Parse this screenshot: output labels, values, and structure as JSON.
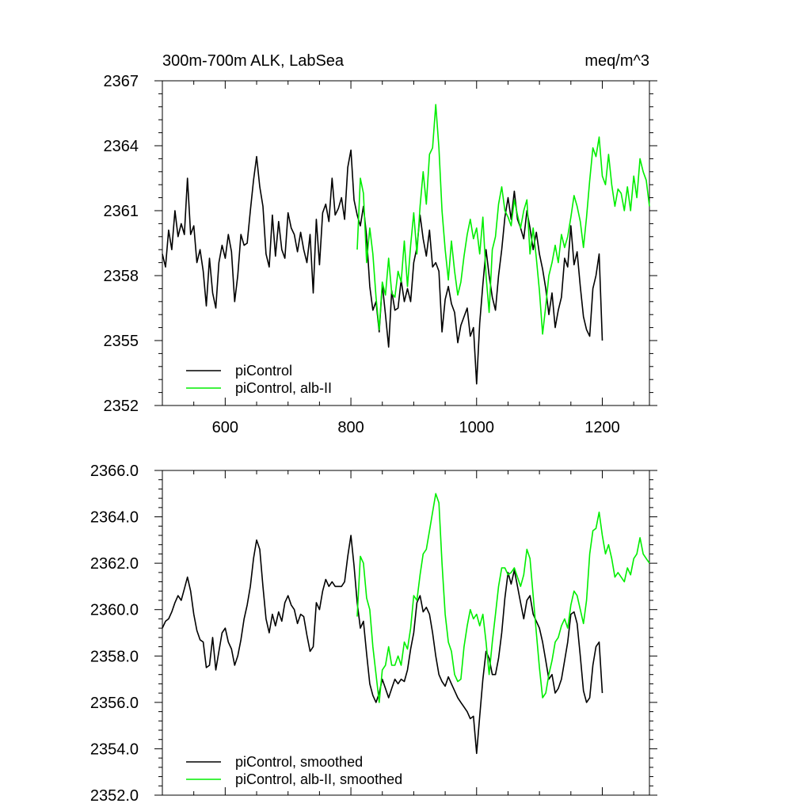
{
  "chart_data": [
    {
      "type": "line",
      "title": "300m-700m ALK, LabSea",
      "units": "meq/m^3",
      "xlim": [
        500,
        1275
      ],
      "ylim": [
        2352,
        2367
      ],
      "xticks": [
        600,
        800,
        1000,
        1200
      ],
      "xtick_labels": [
        "600",
        "800",
        "1000",
        "1200"
      ],
      "yticks": [
        2352,
        2355,
        2358,
        2361,
        2364,
        2367
      ],
      "ytick_labels": [
        "2352",
        "2355",
        "2358",
        "2361",
        "2364",
        "2367"
      ],
      "legend_position": "bottom-left",
      "series": [
        {
          "name": "piControl",
          "color": "#000000",
          "x": [
            500,
            505,
            510,
            515,
            520,
            525,
            530,
            535,
            540,
            545,
            550,
            555,
            560,
            565,
            570,
            575,
            580,
            585,
            590,
            595,
            600,
            605,
            610,
            615,
            620,
            625,
            630,
            635,
            640,
            645,
            650,
            655,
            660,
            665,
            670,
            675,
            680,
            685,
            690,
            695,
            700,
            705,
            710,
            715,
            720,
            725,
            730,
            735,
            740,
            745,
            750,
            755,
            760,
            765,
            770,
            775,
            780,
            785,
            790,
            795,
            800,
            805,
            810,
            815,
            820,
            825,
            830,
            835,
            840,
            845,
            850,
            855,
            860,
            865,
            870,
            875,
            880,
            885,
            890,
            895,
            900,
            905,
            910,
            915,
            920,
            925,
            930,
            935,
            940,
            945,
            950,
            955,
            960,
            965,
            970,
            975,
            980,
            985,
            990,
            995,
            1000,
            1005,
            1010,
            1015,
            1020,
            1025,
            1030,
            1035,
            1040,
            1045,
            1050,
            1055,
            1060,
            1065,
            1070,
            1075,
            1080,
            1085,
            1090,
            1095,
            1100,
            1105,
            1110,
            1115,
            1120,
            1125,
            1130,
            1135,
            1140,
            1145,
            1150,
            1155,
            1160,
            1165,
            1170,
            1175,
            1180,
            1185,
            1190,
            1195,
            1200
          ],
          "values": [
            2359.0,
            2358.4,
            2360.1,
            2359.2,
            2361.0,
            2359.8,
            2360.4,
            2359.9,
            2362.5,
            2359.9,
            2360.3,
            2358.6,
            2359.2,
            2358.2,
            2356.6,
            2358.8,
            2357.2,
            2356.5,
            2358.6,
            2359.4,
            2358.8,
            2359.9,
            2359.1,
            2356.8,
            2358.0,
            2359.9,
            2359.4,
            2359.5,
            2361.0,
            2362.4,
            2363.5,
            2362.1,
            2361.2,
            2359.0,
            2358.4,
            2360.8,
            2358.9,
            2360.5,
            2359.2,
            2358.8,
            2360.9,
            2360.2,
            2359.9,
            2359.1,
            2360.0,
            2359.2,
            2358.6,
            2359.9,
            2357.2,
            2360.6,
            2358.5,
            2360.9,
            2361.3,
            2360.5,
            2362.5,
            2360.8,
            2361.1,
            2361.6,
            2360.6,
            2363.0,
            2363.8,
            2361.5,
            2360.8,
            2360.3,
            2361.2,
            2359.8,
            2357.5,
            2356.4,
            2356.8,
            2355.4,
            2357.6,
            2356.2,
            2354.7,
            2357.3,
            2356.4,
            2356.5,
            2357.8,
            2356.8,
            2357.4,
            2356.8,
            2358.6,
            2359.3,
            2360.8,
            2359.7,
            2358.9,
            2360.1,
            2358.4,
            2358.6,
            2358.2,
            2355.4,
            2356.9,
            2357.5,
            2356.7,
            2356.3,
            2354.9,
            2355.7,
            2356.1,
            2356.5,
            2355.2,
            2355.6,
            2353.0,
            2355.8,
            2357.6,
            2359.2,
            2358.0,
            2357.0,
            2356.4,
            2358.0,
            2359.2,
            2360.7,
            2361.6,
            2360.6,
            2361.9,
            2360.6,
            2360.2,
            2359.7,
            2361.0,
            2360.2,
            2359.2,
            2360.0,
            2359.0,
            2358.3,
            2357.4,
            2356.2,
            2357.2,
            2355.6,
            2356.4,
            2357.0,
            2358.8,
            2358.4,
            2360.3,
            2358.5,
            2359.1,
            2357.5,
            2356.1,
            2355.5,
            2355.2,
            2357.4,
            2358.0,
            2359.0,
            2355.0
          ]
        },
        {
          "name": "piControl, alb-II",
          "color": "#00ee00",
          "x": [
            810,
            815,
            820,
            825,
            830,
            835,
            840,
            845,
            850,
            855,
            860,
            865,
            870,
            875,
            880,
            885,
            890,
            895,
            900,
            905,
            910,
            915,
            920,
            925,
            930,
            935,
            940,
            945,
            950,
            955,
            960,
            965,
            970,
            975,
            980,
            985,
            990,
            995,
            1000,
            1005,
            1010,
            1015,
            1020,
            1025,
            1030,
            1035,
            1040,
            1045,
            1050,
            1055,
            1060,
            1065,
            1070,
            1075,
            1080,
            1085,
            1090,
            1095,
            1100,
            1105,
            1110,
            1115,
            1120,
            1125,
            1130,
            1135,
            1140,
            1145,
            1150,
            1155,
            1160,
            1165,
            1170,
            1175,
            1180,
            1185,
            1190,
            1195,
            1200,
            1205,
            1210,
            1215,
            1220,
            1225,
            1230,
            1235,
            1240,
            1245,
            1250,
            1255,
            1260,
            1265,
            1270,
            1275
          ],
          "values": [
            2359.2,
            2362.5,
            2361.8,
            2358.6,
            2360.2,
            2359.0,
            2357.0,
            2355.5,
            2357.7,
            2357.1,
            2358.8,
            2357.2,
            2357.0,
            2358.2,
            2357.7,
            2359.6,
            2357.5,
            2359.4,
            2360.9,
            2359.0,
            2361.2,
            2362.8,
            2361.3,
            2363.6,
            2363.9,
            2365.9,
            2363.9,
            2361.0,
            2359.2,
            2357.8,
            2359.6,
            2358.2,
            2357.1,
            2357.7,
            2358.9,
            2359.9,
            2360.6,
            2359.7,
            2360.2,
            2359.0,
            2360.7,
            2358.0,
            2356.3,
            2359.2,
            2359.8,
            2361.3,
            2362.1,
            2361.0,
            2360.7,
            2360.3,
            2361.5,
            2360.8,
            2360.2,
            2361.0,
            2361.5,
            2359.0,
            2360.2,
            2358.8,
            2357.3,
            2355.3,
            2356.6,
            2358.0,
            2358.6,
            2359.4,
            2358.6,
            2359.9,
            2359.3,
            2359.8,
            2360.7,
            2361.7,
            2361.2,
            2360.5,
            2359.3,
            2360.7,
            2362.4,
            2363.9,
            2363.5,
            2364.4,
            2362.6,
            2362.2,
            2363.6,
            2362.2,
            2361.2,
            2362.0,
            2361.8,
            2361.0,
            2362.1,
            2361.0,
            2362.6,
            2361.6,
            2363.4,
            2362.8,
            2362.4,
            2361.2
          ]
        }
      ]
    },
    {
      "type": "line",
      "xlim": [
        500,
        1275
      ],
      "ylim": [
        2352,
        2366
      ],
      "xticks": [
        600,
        800,
        1000,
        1200
      ],
      "yticks": [
        2352,
        2354,
        2356,
        2358,
        2360,
        2362,
        2364,
        2366
      ],
      "ytick_labels": [
        "2352.0",
        "2354.0",
        "2356.0",
        "2358.0",
        "2360.0",
        "2362.0",
        "2364.0",
        "2366.0"
      ],
      "legend_position": "bottom-left",
      "series": [
        {
          "name": "piControl, smoothed",
          "color": "#000000",
          "x": [
            500,
            505,
            510,
            515,
            520,
            525,
            530,
            535,
            540,
            545,
            550,
            555,
            560,
            565,
            570,
            575,
            580,
            585,
            590,
            595,
            600,
            605,
            610,
            615,
            620,
            625,
            630,
            635,
            640,
            645,
            650,
            655,
            660,
            665,
            670,
            675,
            680,
            685,
            690,
            695,
            700,
            705,
            710,
            715,
            720,
            725,
            730,
            735,
            740,
            745,
            750,
            755,
            760,
            765,
            770,
            775,
            780,
            785,
            790,
            795,
            800,
            805,
            810,
            815,
            820,
            825,
            830,
            835,
            840,
            845,
            850,
            855,
            860,
            865,
            870,
            875,
            880,
            885,
            890,
            895,
            900,
            905,
            910,
            915,
            920,
            925,
            930,
            935,
            940,
            945,
            950,
            955,
            960,
            965,
            970,
            975,
            980,
            985,
            990,
            995,
            1000,
            1005,
            1010,
            1015,
            1020,
            1025,
            1030,
            1035,
            1040,
            1045,
            1050,
            1055,
            1060,
            1065,
            1070,
            1075,
            1080,
            1085,
            1090,
            1095,
            1100,
            1105,
            1110,
            1115,
            1120,
            1125,
            1130,
            1135,
            1140,
            1145,
            1150,
            1155,
            1160,
            1165,
            1170,
            1175,
            1180,
            1185,
            1190,
            1195,
            1200
          ],
          "values": [
            2359.2,
            2359.5,
            2359.6,
            2359.9,
            2360.3,
            2360.6,
            2360.4,
            2360.9,
            2361.4,
            2360.8,
            2359.8,
            2359.1,
            2358.7,
            2358.6,
            2357.5,
            2357.6,
            2358.8,
            2357.4,
            2358.2,
            2359.0,
            2359.2,
            2358.6,
            2358.3,
            2357.6,
            2358.0,
            2358.7,
            2359.6,
            2360.2,
            2361.0,
            2362.2,
            2363.0,
            2362.6,
            2361.0,
            2359.6,
            2359.0,
            2359.8,
            2359.3,
            2359.9,
            2359.5,
            2360.3,
            2360.6,
            2360.2,
            2360.0,
            2359.4,
            2359.8,
            2359.7,
            2358.9,
            2358.2,
            2358.4,
            2360.3,
            2360.0,
            2360.8,
            2361.3,
            2361.0,
            2361.2,
            2361.0,
            2361.0,
            2361.0,
            2361.2,
            2362.3,
            2363.2,
            2361.9,
            2360.3,
            2359.2,
            2359.5,
            2358.1,
            2356.8,
            2356.3,
            2356.0,
            2356.4,
            2357.0,
            2356.6,
            2356.2,
            2356.6,
            2357.0,
            2356.8,
            2357.0,
            2356.9,
            2357.4,
            2358.3,
            2359.0,
            2360.3,
            2360.6,
            2359.9,
            2360.1,
            2359.8,
            2359.0,
            2358.0,
            2357.2,
            2356.9,
            2356.7,
            2357.1,
            2356.8,
            2356.5,
            2356.2,
            2356.0,
            2355.8,
            2355.6,
            2355.3,
            2355.4,
            2353.8,
            2355.4,
            2357.0,
            2358.2,
            2357.9,
            2357.2,
            2357.2,
            2357.9,
            2359.0,
            2360.5,
            2361.6,
            2361.1,
            2361.7,
            2361.0,
            2360.3,
            2359.6,
            2360.4,
            2360.6,
            2359.8,
            2359.5,
            2359.2,
            2358.6,
            2357.8,
            2357.0,
            2357.2,
            2356.4,
            2356.6,
            2357.0,
            2357.8,
            2358.6,
            2359.8,
            2359.9,
            2359.4,
            2358.0,
            2356.5,
            2356.0,
            2356.2,
            2357.6,
            2358.4,
            2358.6,
            2356.4
          ]
        },
        {
          "name": "piControl, alb-II, smoothed",
          "color": "#00ee00",
          "x": [
            810,
            815,
            820,
            825,
            830,
            835,
            840,
            845,
            850,
            855,
            860,
            865,
            870,
            875,
            880,
            885,
            890,
            895,
            900,
            905,
            910,
            915,
            920,
            925,
            930,
            935,
            940,
            945,
            950,
            955,
            960,
            965,
            970,
            975,
            980,
            985,
            990,
            995,
            1000,
            1005,
            1010,
            1015,
            1020,
            1025,
            1030,
            1035,
            1040,
            1045,
            1050,
            1055,
            1060,
            1065,
            1070,
            1075,
            1080,
            1085,
            1090,
            1095,
            1100,
            1105,
            1110,
            1115,
            1120,
            1125,
            1130,
            1135,
            1140,
            1145,
            1150,
            1155,
            1160,
            1165,
            1170,
            1175,
            1180,
            1185,
            1190,
            1195,
            1200,
            1205,
            1210,
            1215,
            1220,
            1225,
            1230,
            1235,
            1240,
            1245,
            1250,
            1255,
            1260,
            1265,
            1270,
            1275
          ],
          "values": [
            2359.7,
            2362.3,
            2362.0,
            2360.5,
            2360.0,
            2358.4,
            2357.2,
            2356.0,
            2357.4,
            2357.6,
            2358.4,
            2357.6,
            2357.6,
            2358.0,
            2357.6,
            2358.6,
            2358.3,
            2359.2,
            2360.6,
            2360.4,
            2361.5,
            2362.4,
            2362.6,
            2363.4,
            2364.2,
            2365.0,
            2364.6,
            2362.0,
            2359.8,
            2358.6,
            2358.2,
            2357.2,
            2356.9,
            2357.0,
            2358.4,
            2359.3,
            2360.0,
            2359.6,
            2359.8,
            2359.3,
            2359.8,
            2358.6,
            2357.2,
            2358.6,
            2359.8,
            2361.0,
            2361.8,
            2361.8,
            2361.5,
            2361.6,
            2361.8,
            2361.4,
            2361.0,
            2361.5,
            2362.6,
            2362.2,
            2360.6,
            2359.0,
            2357.5,
            2356.2,
            2356.4,
            2357.2,
            2357.8,
            2358.6,
            2358.8,
            2359.3,
            2359.6,
            2359.2,
            2360.2,
            2360.8,
            2360.6,
            2360.0,
            2359.4,
            2360.4,
            2362.4,
            2363.4,
            2363.5,
            2364.2,
            2363.2,
            2362.4,
            2362.8,
            2362.2,
            2361.4,
            2361.6,
            2361.4,
            2361.2,
            2361.8,
            2361.5,
            2362.2,
            2362.4,
            2363.1,
            2362.4,
            2362.2,
            2362.0
          ]
        }
      ]
    }
  ]
}
